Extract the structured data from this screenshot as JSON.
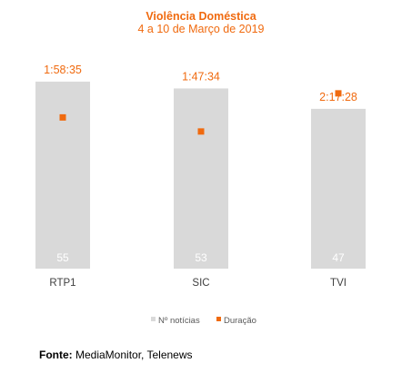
{
  "colors": {
    "accent": "#F06A0F",
    "bar": "#D9D9D9",
    "count_label": "#FFFFFF",
    "axis_text": "#404040"
  },
  "chart_data": {
    "type": "bar",
    "title": "Violência Doméstica",
    "subtitle": "4 a 10 de Março de 2019",
    "categories": [
      "RTP1",
      "SIC",
      "TVI"
    ],
    "series": [
      {
        "name": "Nº notícias",
        "kind": "bar",
        "axis": "primary",
        "values": [
          55,
          53,
          47
        ],
        "labels": [
          "55",
          "53",
          "47"
        ]
      },
      {
        "name": "Duração",
        "kind": "marker",
        "axis": "secondary",
        "values": [
          "1:58:35",
          "1:47:34",
          "2:17:28"
        ],
        "values_seconds": [
          7115,
          6454,
          8248
        ],
        "labels": [
          "1:58:35",
          "1:47:34",
          "2:17:28"
        ]
      }
    ],
    "ylim": [
      0,
      75
    ],
    "y2lim_seconds": [
      0,
      12000
    ],
    "grid": false,
    "legend_position": "bottom"
  },
  "source": {
    "label": "Fonte:",
    "text": "MediaMonitor, Telenews"
  }
}
